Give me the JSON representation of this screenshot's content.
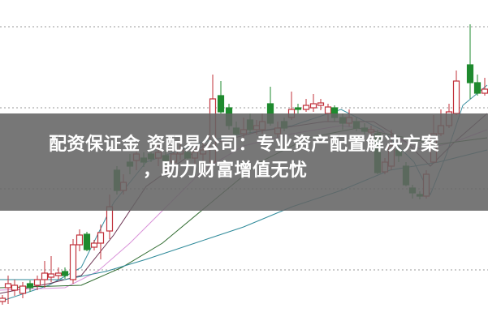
{
  "article": {
    "title_line1": "配资保证金 资配易公司：专业资产配置解决方案",
    "title_line2": "，助力财富增值无忧"
  },
  "chart": {
    "type": "candlestick",
    "grid": "dotted horizontal",
    "colors": {
      "up": "#c0303a",
      "down": "#1e8a2e",
      "grid": "#999999",
      "banner": "#646464"
    }
  }
}
